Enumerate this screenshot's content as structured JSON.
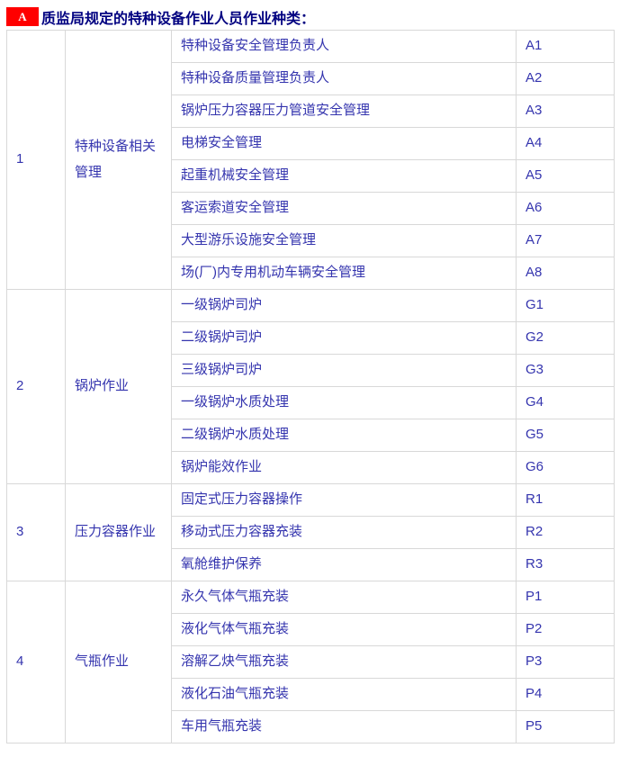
{
  "header": {
    "badge_label": "A",
    "title": "质监局规定的特种设备作业人员作业种类："
  },
  "colors": {
    "badge_bg": "#ff0000",
    "badge_text": "#ffffff",
    "title_text": "#000080",
    "cell_text": "#3434ae",
    "table_border": "#d8d8d8"
  },
  "table": {
    "groups": [
      {
        "no": "1",
        "category": "特种设备相关管理",
        "rows": [
          {
            "job": "特种设备安全管理负责人",
            "code": "A1"
          },
          {
            "job": "特种设备质量管理负责人",
            "code": "A2"
          },
          {
            "job": "锅炉压力容器压力管道安全管理",
            "code": "A3"
          },
          {
            "job": "电梯安全管理",
            "code": "A4"
          },
          {
            "job": "起重机械安全管理",
            "code": "A5"
          },
          {
            "job": "客运索道安全管理",
            "code": "A6"
          },
          {
            "job": "大型游乐设施安全管理",
            "code": "A7"
          },
          {
            "job": "场(厂)内专用机动车辆安全管理",
            "code": "A8"
          }
        ]
      },
      {
        "no": "2",
        "category": "锅炉作业",
        "rows": [
          {
            "job": "一级锅炉司炉",
            "code": "G1"
          },
          {
            "job": "二级锅炉司炉",
            "code": "G2"
          },
          {
            "job": "三级锅炉司炉",
            "code": "G3"
          },
          {
            "job": "一级锅炉水质处理",
            "code": "G4"
          },
          {
            "job": "二级锅炉水质处理",
            "code": "G5"
          },
          {
            "job": "锅炉能效作业",
            "code": "G6"
          }
        ]
      },
      {
        "no": "3",
        "category": "压力容器作业",
        "rows": [
          {
            "job": "固定式压力容器操作",
            "code": "R1"
          },
          {
            "job": "移动式压力容器充装",
            "code": "R2"
          },
          {
            "job": "氧舱维护保养",
            "code": "R3"
          }
        ]
      },
      {
        "no": "4",
        "category": "气瓶作业",
        "rows": [
          {
            "job": "永久气体气瓶充装",
            "code": "P1"
          },
          {
            "job": "液化气体气瓶充装",
            "code": "P2"
          },
          {
            "job": "溶解乙炔气瓶充装",
            "code": "P3"
          },
          {
            "job": "液化石油气瓶充装",
            "code": "P4"
          },
          {
            "job": "车用气瓶充装",
            "code": "P5"
          }
        ]
      }
    ]
  }
}
